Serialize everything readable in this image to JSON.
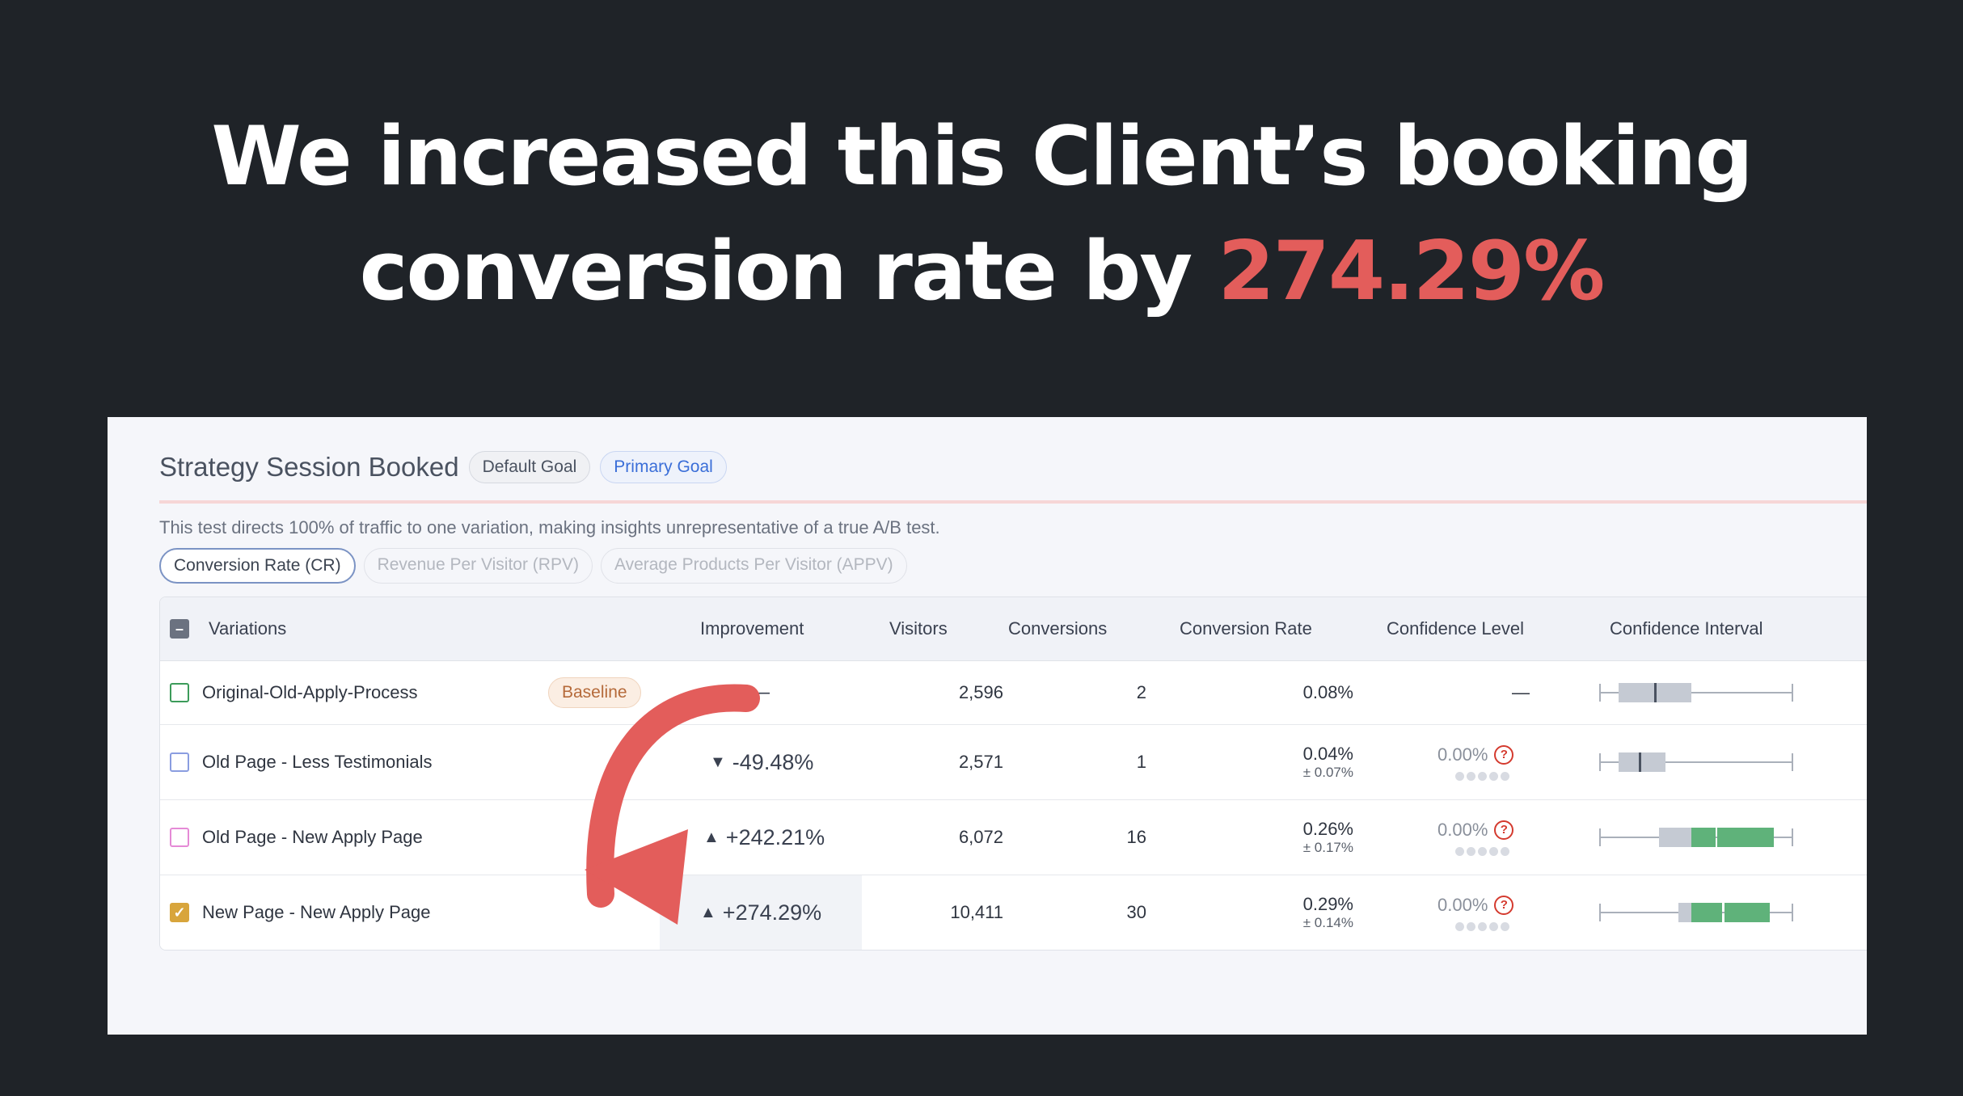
{
  "headline": {
    "line1": "We increased this Client’s booking",
    "line2_prefix": "conversion rate by ",
    "highlight": "274.29%"
  },
  "goal": {
    "title": "Strategy Session Booked",
    "default_badge": "Default Goal",
    "primary_badge": "Primary Goal"
  },
  "notice": "This test directs 100% of traffic to one variation, making insights unrepresentative of a true A/B test.",
  "tabs": [
    "Conversion Rate (CR)",
    "Revenue Per Visitor (RPV)",
    "Average Products Per Visitor (APPV)"
  ],
  "columns": {
    "variations": "Variations",
    "improvement": "Improvement",
    "visitors": "Visitors",
    "conversions": "Conversions",
    "conversion_rate": "Conversion Rate",
    "confidence_level": "Confidence Level",
    "confidence_interval": "Confidence Interval"
  },
  "rows": [
    {
      "name": "Original-Old-Apply-Process",
      "badge": "Baseline",
      "improvement": "—",
      "visitors": "2,596",
      "conversions": "2",
      "cr": "0.08%",
      "cr_pm": "",
      "confidence": "—"
    },
    {
      "name": "Old Page - Less Testimonials",
      "improvement": "-49.48%",
      "direction": "down",
      "visitors": "2,571",
      "conversions": "1",
      "cr": "0.04%",
      "cr_pm": "± 0.07%",
      "confidence": "0.00%"
    },
    {
      "name": "Old Page - New Apply Page",
      "improvement": "+242.21%",
      "direction": "up",
      "visitors": "6,072",
      "conversions": "16",
      "cr": "0.26%",
      "cr_pm": "± 0.17%",
      "confidence": "0.00%"
    },
    {
      "name": "New Page - New Apply Page",
      "improvement": "+274.29%",
      "direction": "up",
      "visitors": "10,411",
      "conversions": "30",
      "cr": "0.29%",
      "cr_pm": "± 0.14%",
      "confidence": "0.00%"
    }
  ],
  "glyphs": {
    "up": "▲",
    "down": "▼",
    "check": "✓",
    "minus": "–",
    "question": "?"
  },
  "colors": {
    "background": "#1f2328",
    "highlight": "#e35d5b",
    "arrow": "#e35d5b",
    "ci_green": "#5fb27a",
    "ci_gray": "#c5cad3",
    "checkbox_green": "#3c9b5a",
    "checkbox_blue": "#8a9de0",
    "checkbox_pink": "#e58ad6",
    "checkbox_gold": "#d8a53c"
  }
}
